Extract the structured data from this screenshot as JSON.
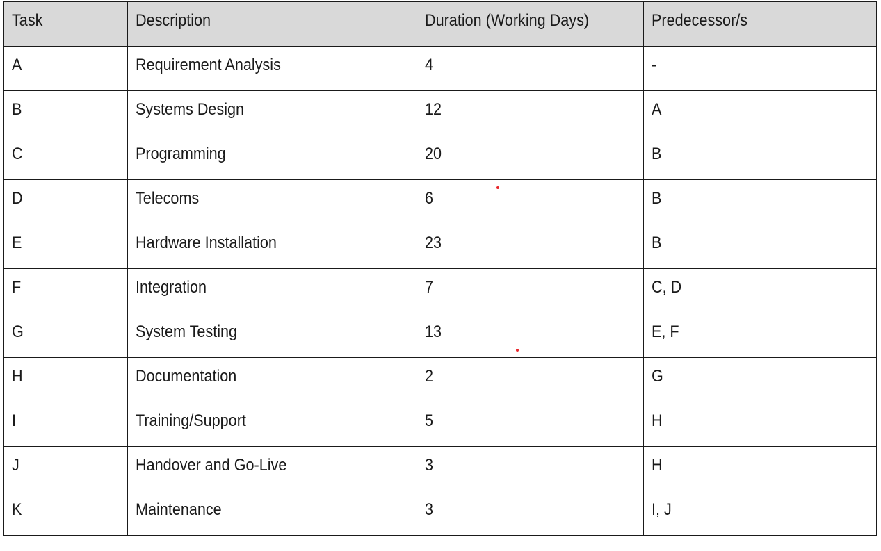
{
  "table": {
    "headers": [
      "Task",
      "Description",
      "Duration (Working Days)",
      "Predecessor/s"
    ],
    "rows": [
      {
        "task": "A",
        "description": "Requirement Analysis",
        "duration": "4",
        "predecessors": "-"
      },
      {
        "task": "B",
        "description": "Systems Design",
        "duration": "12",
        "predecessors": "A"
      },
      {
        "task": "C",
        "description": "Programming",
        "duration": "20",
        "predecessors": "B"
      },
      {
        "task": "D",
        "description": "Telecoms",
        "duration": "6",
        "predecessors": "B"
      },
      {
        "task": "E",
        "description": "Hardware Installation",
        "duration": "23",
        "predecessors": "B"
      },
      {
        "task": "F",
        "description": "Integration",
        "duration": "7",
        "predecessors": "C, D"
      },
      {
        "task": "G",
        "description": "System Testing",
        "duration": "13",
        "predecessors": "E, F"
      },
      {
        "task": "H",
        "description": "Documentation",
        "duration": "2",
        "predecessors": "G"
      },
      {
        "task": "I",
        "description": "Training/Support",
        "duration": "5",
        "predecessors": "H"
      },
      {
        "task": "J",
        "description": "Handover and Go-Live",
        "duration": "3",
        "predecessors": "H"
      },
      {
        "task": "K",
        "description": "Maintenance",
        "duration": "3",
        "predecessors": "I, J"
      }
    ]
  },
  "colors": {
    "header_background": "#d9d9d9",
    "border": "#1a1a1a",
    "text": "#1a1a1a",
    "marker_dot": "#e8262b"
  }
}
